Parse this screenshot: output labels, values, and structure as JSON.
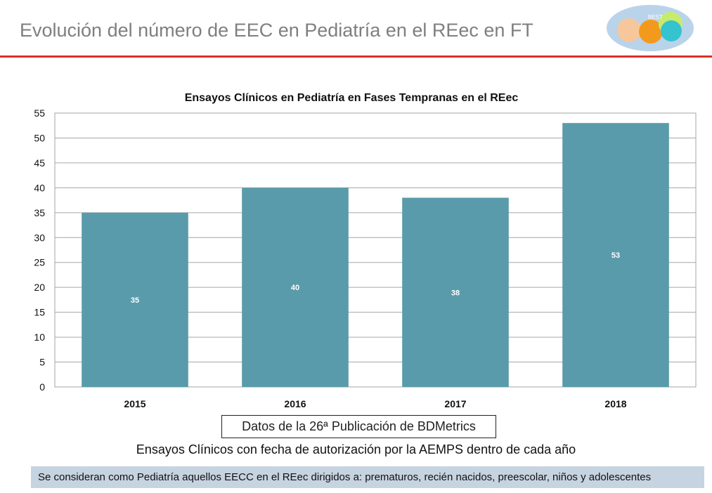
{
  "slide": {
    "title": "Evolución del número de EEC en Pediatría en el REec en FT",
    "logo_text": "BEST",
    "source_note": "Datos de la 26ª Publicación de BDMetrics",
    "subnote": "Ensayos Clínicos con fecha de autorización por la AEMPS dentro de cada año",
    "footer_note": "Se consideran como Pediatría aquellos EECC en el REec dirigidos a: prematuros, recién nacidos, preescolar, niños y adolescentes"
  },
  "colors": {
    "bar": "#5a9bab",
    "title_rule": "#d9302a",
    "footer_bg": "#c6d3e0"
  },
  "chart_data": {
    "type": "bar",
    "title": "Ensayos Clínicos en Pediatría en Fases Tempranas en el REec",
    "xlabel": "",
    "ylabel": "",
    "categories": [
      "2015",
      "2016",
      "2017",
      "2018"
    ],
    "values": [
      35,
      40,
      38,
      53
    ],
    "data_labels": [
      "35",
      "40",
      "38",
      "53"
    ],
    "ylim": [
      0,
      55
    ],
    "yticks": [
      0,
      5,
      10,
      15,
      20,
      25,
      30,
      35,
      40,
      45,
      50,
      55
    ],
    "grid": true,
    "legend": "none"
  }
}
